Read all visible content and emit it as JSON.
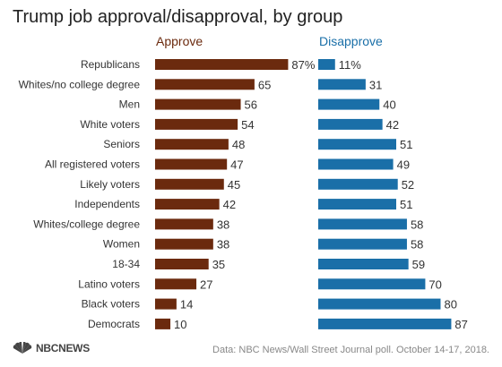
{
  "title": "Trump job approval/disapproval, by group",
  "footer": {
    "logo_text": "NBCNEWS",
    "source": "Data: NBC News/Wall Street Journal poll. October 14-17, 2018."
  },
  "colors": {
    "approve": "#6b2a0e",
    "disapprove": "#1a6fa8"
  },
  "chart_data": {
    "type": "bar",
    "orientation": "horizontal",
    "title": "Trump job approval/disapproval, by group",
    "categories": [
      "Republicans",
      "Whites/no college degree",
      "Men",
      "White voters",
      "Seniors",
      "All registered voters",
      "Likely voters",
      "Independents",
      "Whites/college degree",
      "Women",
      "18-34",
      "Latino voters",
      "Black voters",
      "Democrats"
    ],
    "series": [
      {
        "name": "Approve",
        "values": [
          87,
          65,
          56,
          54,
          48,
          47,
          45,
          42,
          38,
          38,
          35,
          27,
          14,
          10
        ],
        "labels": [
          "87%",
          "65",
          "56",
          "54",
          "48",
          "47",
          "45",
          "42",
          "38",
          "38",
          "35",
          "27",
          "14",
          "10"
        ]
      },
      {
        "name": "Disapprove",
        "values": [
          11,
          31,
          40,
          42,
          51,
          49,
          52,
          51,
          58,
          58,
          59,
          70,
          80,
          87
        ],
        "labels": [
          "11%",
          "31",
          "40",
          "42",
          "51",
          "49",
          "52",
          "51",
          "58",
          "58",
          "59",
          "70",
          "80",
          "87"
        ]
      }
    ],
    "xlim": [
      0,
      100
    ],
    "grid": false,
    "legend": "column headers above bars"
  }
}
